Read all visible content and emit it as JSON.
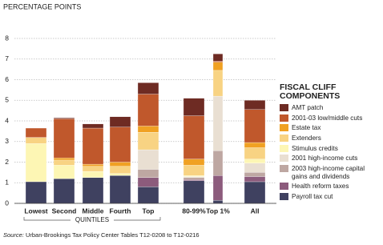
{
  "chart_data": {
    "type": "stacked_bar",
    "y_label": "PERCENTAGE POINTS",
    "legend_title": "FISCAL CLIFF COMPONENTS",
    "group_label": "QUINTILES",
    "source_label": "Source:",
    "source": "Urban-Brookings Tax Policy Center Tables T12-0208 to T12-0216",
    "categories": [
      "Lowest",
      "Second",
      "Middle",
      "Fourth",
      "Top",
      "80-99%",
      "Top 1%",
      "All"
    ],
    "ylim": [
      0,
      8
    ],
    "yticks": [
      0,
      1,
      2,
      3,
      4,
      5,
      6,
      7,
      8
    ],
    "grid": true,
    "series": [
      {
        "name": "Payroll tax cut",
        "color": "#3f4160",
        "values": [
          1.05,
          1.2,
          1.25,
          1.35,
          0.8,
          1.1,
          0.15,
          1.05
        ]
      },
      {
        "name": "Health reform taxes",
        "color": "#8c5b7c",
        "values": [
          0,
          0,
          0,
          0,
          0.45,
          0.05,
          1.2,
          0.25
        ]
      },
      {
        "name": "2003 high-income capital gains and dividends",
        "color": "#bea7a2",
        "values": [
          0,
          0,
          0,
          0,
          0.4,
          0.1,
          1.2,
          0.2
        ]
      },
      {
        "name": "2001 high-income cuts",
        "color": "#e9dfd2",
        "values": [
          0,
          0,
          0,
          0,
          0.95,
          0.05,
          2.65,
          0.45
        ]
      },
      {
        "name": "Stimulus credits",
        "color": "#fdf6b4",
        "values": [
          1.85,
          0.65,
          0.3,
          0.1,
          0,
          0.05,
          0,
          0.2
        ]
      },
      {
        "name": "Extenders",
        "color": "#f8d383",
        "values": [
          0.3,
          0.25,
          0.25,
          0.35,
          0.85,
          0.5,
          1.25,
          0.55
        ]
      },
      {
        "name": "Estate tax",
        "color": "#f0a123",
        "values": [
          0,
          0.1,
          0.1,
          0.2,
          0.3,
          0.3,
          0.4,
          0.25
        ]
      },
      {
        "name": "2001-03 low/middle cuts",
        "color": "#c0582c",
        "values": [
          0.45,
          1.9,
          1.75,
          1.7,
          1.55,
          2.1,
          0.05,
          1.6
        ]
      },
      {
        "name": "AMT patch",
        "color": "#6e2b23",
        "values": [
          0,
          0.05,
          0.2,
          0.5,
          0.55,
          0.85,
          0.35,
          0.45
        ]
      }
    ]
  }
}
